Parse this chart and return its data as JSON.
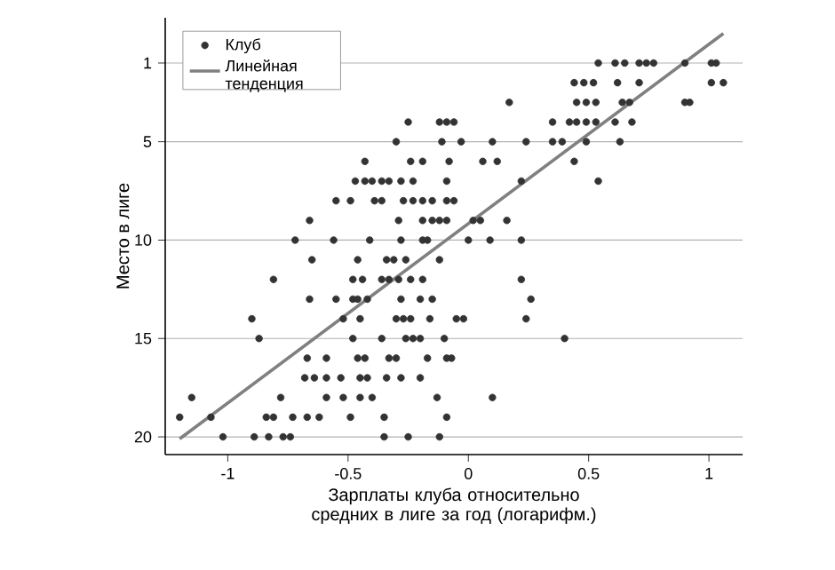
{
  "chart_data": {
    "type": "scatter",
    "xlabel": "Зарплаты клуба относительно средних в лиге за год (логарифм.)",
    "ylabel": "Место в лиге",
    "xlim": [
      -1.26,
      1.14
    ],
    "ylim": [
      20.9,
      -1.3
    ],
    "xticks": [
      -1,
      -0.5,
      0,
      0.5,
      1
    ],
    "yticks": [
      1,
      5,
      10,
      15,
      20
    ],
    "grid": "y",
    "legend": "top left",
    "series": [
      {
        "name": "Клуб",
        "type": "scatter",
        "marker": "circle",
        "color": "#333333",
        "x": [
          0.54,
          0.61,
          0.65,
          0.71,
          0.74,
          0.77,
          0.9,
          1.01,
          1.03,
          0.44,
          0.48,
          0.52,
          0.62,
          0.71,
          1.01,
          1.06,
          0.17,
          0.45,
          0.49,
          0.53,
          0.64,
          0.67,
          0.9,
          0.92,
          -0.25,
          -0.12,
          -0.09,
          -0.06,
          0.35,
          0.42,
          0.45,
          0.49,
          0.53,
          0.61,
          0.68,
          -0.3,
          -0.11,
          -0.03,
          0.1,
          0.24,
          0.35,
          0.39,
          0.49,
          0.63,
          -0.43,
          -0.24,
          -0.19,
          -0.08,
          0.06,
          0.12,
          0.44,
          -0.47,
          -0.43,
          -0.4,
          -0.36,
          -0.33,
          -0.28,
          -0.23,
          -0.09,
          0.22,
          0.54,
          -0.55,
          -0.49,
          -0.39,
          -0.36,
          -0.27,
          -0.23,
          -0.19,
          -0.15,
          -0.09,
          -0.06,
          -0.66,
          -0.29,
          -0.19,
          -0.15,
          -0.12,
          -0.09,
          0.02,
          0.05,
          0.16,
          -0.72,
          -0.56,
          -0.41,
          -0.28,
          -0.19,
          -0.17,
          0,
          0.09,
          0.22,
          -0.65,
          -0.46,
          -0.34,
          -0.31,
          -0.26,
          -0.12,
          -0.81,
          -0.48,
          -0.44,
          -0.36,
          -0.33,
          -0.29,
          -0.24,
          -0.19,
          0.22,
          -0.66,
          -0.55,
          -0.48,
          -0.46,
          -0.42,
          -0.28,
          -0.2,
          -0.15,
          0.26,
          -0.9,
          -0.52,
          -0.45,
          -0.3,
          -0.27,
          -0.24,
          -0.16,
          -0.05,
          -0.02,
          0.24,
          -0.87,
          -0.48,
          -0.36,
          -0.26,
          -0.23,
          -0.2,
          -0.1,
          0.4,
          -0.67,
          -0.59,
          -0.46,
          -0.43,
          -0.33,
          -0.3,
          -0.17,
          -0.09,
          -0.07,
          -0.68,
          -0.64,
          -0.59,
          -0.53,
          -0.45,
          -0.42,
          -0.34,
          -0.28,
          -0.2,
          -1.15,
          -0.78,
          -0.59,
          -0.52,
          -0.45,
          -0.4,
          -0.13,
          0.1,
          -1.2,
          -1.07,
          -0.84,
          -0.81,
          -0.73,
          -0.67,
          -0.62,
          -0.49,
          -0.35,
          -0.09,
          -1.02,
          -0.89,
          -0.83,
          -0.77,
          -0.74,
          -0.35,
          -0.25,
          -0.12
        ],
        "values": [
          1,
          1,
          1,
          1,
          1,
          1,
          1,
          1,
          1,
          2,
          2,
          2,
          2,
          2,
          2,
          2,
          3,
          3,
          3,
          3,
          3,
          3,
          3,
          3,
          4,
          4,
          4,
          4,
          4,
          4,
          4,
          4,
          4,
          4,
          4,
          5,
          5,
          5,
          5,
          5,
          5,
          5,
          5,
          5,
          6,
          6,
          6,
          6,
          6,
          6,
          6,
          7,
          7,
          7,
          7,
          7,
          7,
          7,
          7,
          7,
          7,
          8,
          8,
          8,
          8,
          8,
          8,
          8,
          8,
          8,
          8,
          9,
          9,
          9,
          9,
          9,
          9,
          9,
          9,
          9,
          10,
          10,
          10,
          10,
          10,
          10,
          10,
          10,
          10,
          11,
          11,
          11,
          11,
          11,
          11,
          12,
          12,
          12,
          12,
          12,
          12,
          12,
          12,
          12,
          13,
          13,
          13,
          13,
          13,
          13,
          13,
          13,
          13,
          14,
          14,
          14,
          14,
          14,
          14,
          14,
          14,
          14,
          14,
          15,
          15,
          15,
          15,
          15,
          15,
          15,
          15,
          16,
          16,
          16,
          16,
          16,
          16,
          16,
          16,
          16,
          17,
          17,
          17,
          17,
          17,
          17,
          17,
          17,
          17,
          18,
          18,
          18,
          18,
          18,
          18,
          18,
          18,
          19,
          19,
          19,
          19,
          19,
          19,
          19,
          19,
          19,
          19,
          20,
          20,
          20,
          20,
          20,
          20,
          20,
          20
        ]
      },
      {
        "name": "Линейная тенденция",
        "type": "line",
        "color": "#808080",
        "marker": "none",
        "x": [
          -1.2,
          1.06
        ],
        "values": [
          20.1,
          -0.5
        ]
      }
    ]
  }
}
